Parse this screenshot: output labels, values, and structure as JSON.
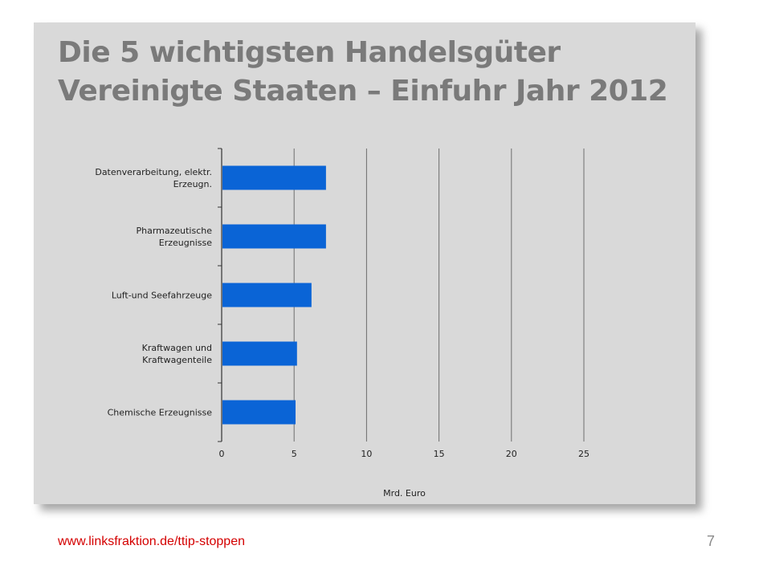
{
  "slide": {
    "footer_link": "www.linksfraktion.de/ttip-stoppen",
    "page_number": "7"
  },
  "colors": {
    "background": "#d9d9d9",
    "bar": "#0a64d6",
    "title": "#7a7a7a",
    "link": "#d40000",
    "gridline": "#6e6e6e"
  },
  "chart_data": {
    "type": "bar",
    "orientation": "horizontal",
    "title": "Die 5 wichtigsten Handelsgüter Vereinigte Staaten – Einfuhr  Jahr 2012",
    "categories": [
      [
        "Datenverarbeitung, elektr.",
        "Erzeugn."
      ],
      [
        "Pharmazeutische",
        "Erzeugnisse"
      ],
      [
        "Luft-und Seefahrzeuge"
      ],
      [
        "Kraftwagen und",
        "Kraftwagenteile"
      ],
      [
        "Chemische Erzeugnisse"
      ]
    ],
    "values": [
      7.2,
      7.2,
      6.2,
      5.2,
      5.1
    ],
    "xlabel": "Mrd. Euro",
    "xlim": [
      0,
      25
    ],
    "xticks": [
      0,
      5,
      10,
      15,
      20,
      25
    ],
    "grid": true
  }
}
